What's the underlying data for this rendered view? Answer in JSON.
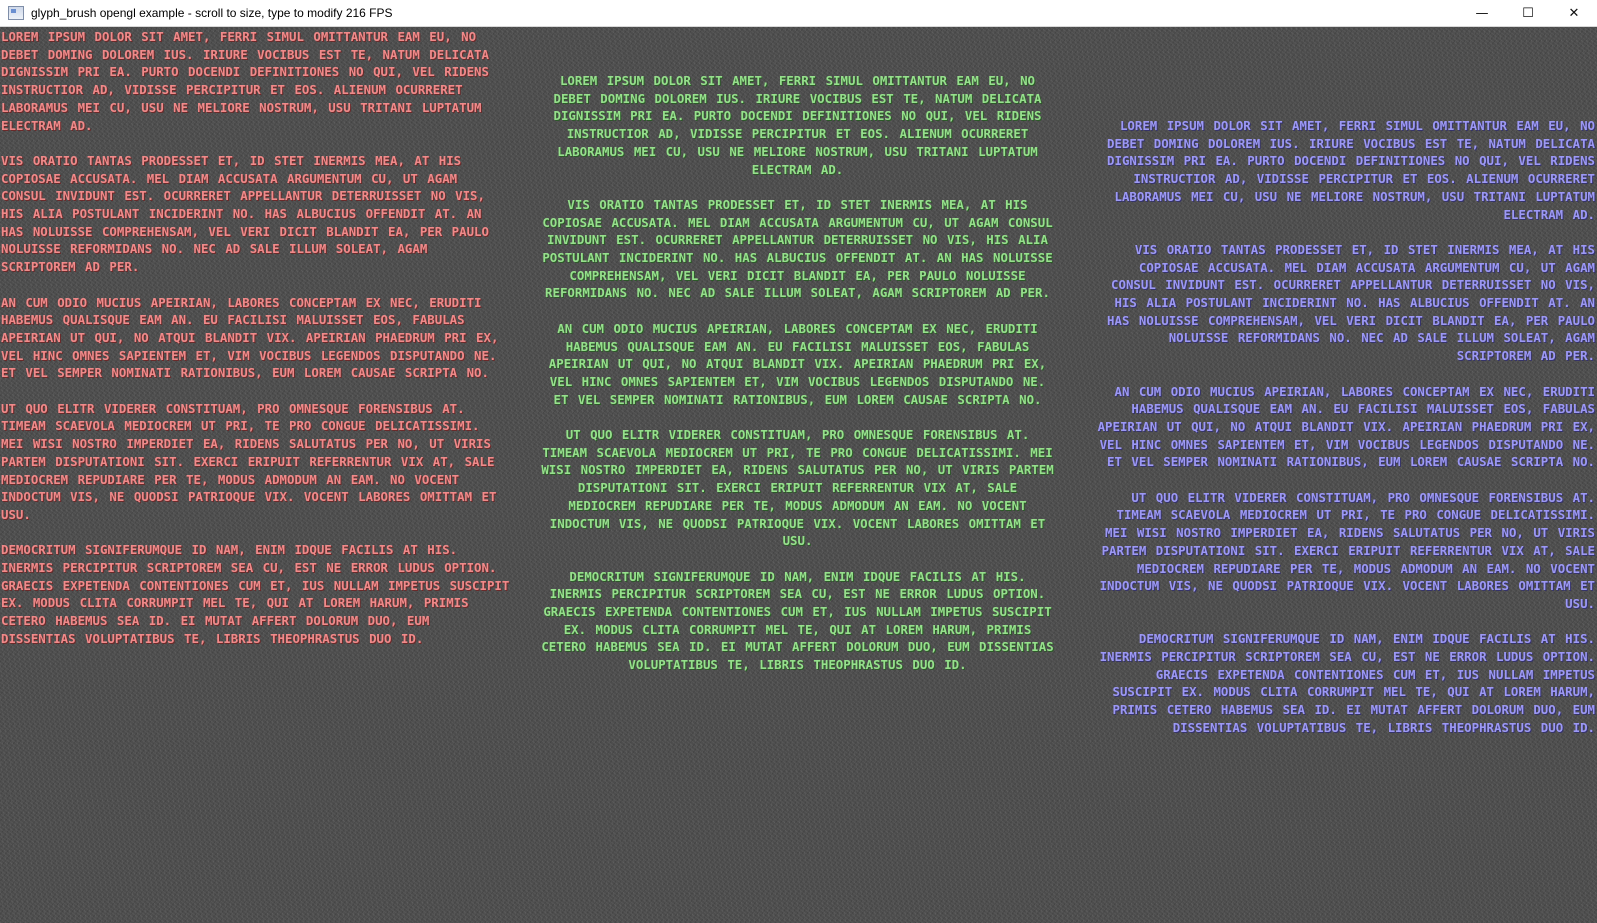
{
  "window": {
    "title": "glyph_brush opengl example - scroll to size, type to modify 216 FPS",
    "minimize_glyph": "—",
    "maximize_glyph": "☐",
    "close_glyph": "✕"
  },
  "colors": {
    "left_text": "#f08a8a",
    "center_text": "#96e08c",
    "right_text": "#9c98f4",
    "background": "#4d4d4d"
  },
  "paragraphs": [
    "Lorem ipsum dolor sit amet, ferri simul omittantur eam eu, no debet doming dolorem ius. Iriure vocibus est te, natum delicata dignissim pri ea. Purto docendi definitiones no qui, vel ridens instructior ad, vidisse percipitur et eos. Alienum ocurreret laboramus mei cu, usu ne meliore nostrum, usu tritani luptatum electram ad.",
    "Vis oratio tantas prodesset et, id stet inermis mea, at his copiosae accusata. Mel diam accusata argumentum cu, ut agam consul invidunt est. Ocurreret appellantur deterruisset no vis, his alia postulant inciderint no. Has albucius offendit at. An has noluisse comprehensam, vel veri dicit blandit ea, per paulo noluisse reformidans no. Nec ad sale illum soleat, agam scriptorem ad per.",
    "An cum odio mucius apeirian, labores conceptam ex nec, eruditi habemus qualisque eam an. Eu facilisi maluisset eos, fabulas apeirian ut qui, no atqui blandit vix. Apeirian phaedrum pri ex, vel hinc omnes sapientem et, vim vocibus legendos disputando ne. Et vel semper nominati rationibus, eum lorem causae scripta no.",
    "Ut quo elitr viderer constituam, pro omnesque forensibus at. Timeam scaevola mediocrem ut pri, te pro congue delicatissimi. Mei wisi nostro imperdiet ea, ridens salutatus per no, ut viris partem disputationi sit. Exerci eripuit referrentur vix at, sale mediocrem repudiare per te, modus admodum an eam. No vocent indoctum vis, ne quodsi patrioque vix. Vocent labores omittam et usu.",
    "Democritum signiferumque id nam, enim idque facilis at his. Inermis percipitur scriptorem sea cu, est ne error ludus option. Graecis expetenda contentiones cum et, ius nullam impetus suscipit ex. Modus clita corrumpit mel te, qui at lorem harum, primis cetero habemus sea id. Ei mutat affert dolorum duo, eum dissentias voluptatibus te, libris theophrastus duo id."
  ]
}
